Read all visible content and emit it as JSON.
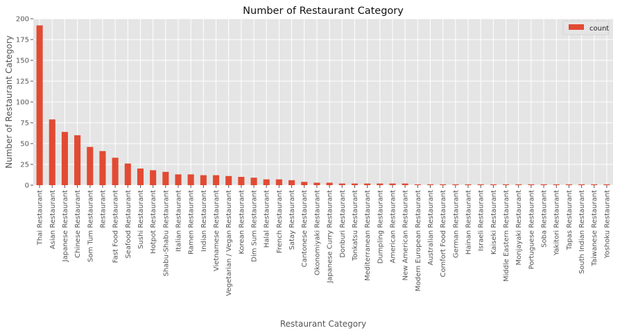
{
  "chart_data": {
    "type": "bar",
    "title": "Number of Restaurant Category",
    "xlabel": "Restaurant Category",
    "ylabel": "Number of Restaurant Category",
    "ylim": [
      0,
      200
    ],
    "yticks": [
      0,
      25,
      50,
      75,
      100,
      125,
      150,
      175,
      200
    ],
    "grid": true,
    "legend_position": "top-right",
    "colors": {
      "bar": "#E24A33",
      "plot_bg": "#E5E5E5",
      "grid": "#FFFFFF",
      "text": "#555555"
    },
    "categories": [
      "Thai Restaurant",
      "Asian Restaurant",
      "Japanese Restaurant",
      "Chinese Restaurant",
      "Som Tum Restaurant",
      "Restaurant",
      "Fast Food Restaurant",
      "Seafood Restaurant",
      "Sushi Restaurant",
      "Hotpot Restaurant",
      "Shabu-Shabu Restaurant",
      "Italian Restaurant",
      "Ramen Restaurant",
      "Indian Restaurant",
      "Vietnamese Restaurant",
      "Vegetarian / Vegan Restaurant",
      "Korean Restaurant",
      "Dim Sum Restaurant",
      "Halal Restaurant",
      "French Restaurant",
      "Satay Restaurant",
      "Cantonese Restaurant",
      "Okonomiyaki Restaurant",
      "Japanese Curry Restaurant",
      "Donburi Restaurant",
      "Tonkatsu Restaurant",
      "Mediterranean Restaurant",
      "Dumpling Restaurant",
      "American Restaurant",
      "New American Restaurant",
      "Modern European Restaurant",
      "Australian Restaurant",
      "Comfort Food Restaurant",
      "German Restaurant",
      "Hainan Restaurant",
      "Israeli Restaurant",
      "Kaiseki Restaurant",
      "Middle Eastern Restaurant",
      "Monjayaki Restaurant",
      "Portuguese Restaurant",
      "Soba Restaurant",
      "Yakitori Restaurant",
      "Tapas Restaurant",
      "South Indian Restaurant",
      "Taiwanese Restaurant",
      "Yoshoku Restaurant"
    ],
    "series": [
      {
        "name": "count",
        "values": [
          192,
          79,
          64,
          60,
          46,
          41,
          33,
          26,
          20,
          18,
          16,
          13,
          13,
          12,
          12,
          11,
          10,
          9,
          7,
          7,
          6,
          4,
          3,
          3,
          2,
          2,
          2,
          2,
          2,
          2,
          1,
          1,
          1,
          1,
          1,
          1,
          1,
          1,
          1,
          1,
          1,
          1,
          1,
          1,
          1,
          1
        ]
      }
    ]
  }
}
